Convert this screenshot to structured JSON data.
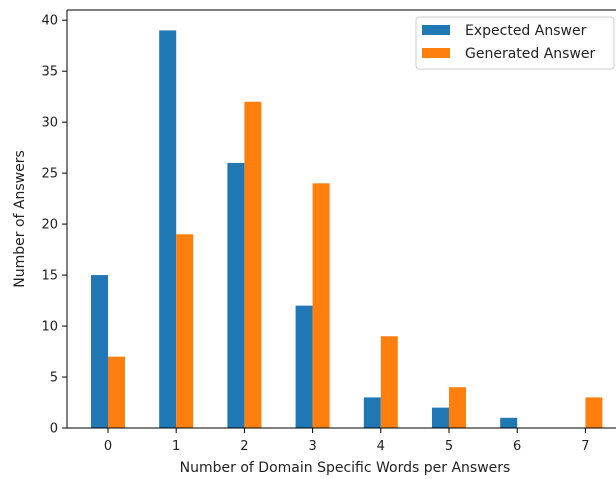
{
  "chart_data": {
    "type": "bar",
    "title": "",
    "xlabel": "Number of Domain Specific Words per Answers",
    "ylabel": "Number of Answers",
    "categories": [
      "0",
      "1",
      "2",
      "3",
      "4",
      "5",
      "6",
      "7"
    ],
    "series": [
      {
        "name": "Expected Answer",
        "color": "#1f77b4",
        "values": [
          15,
          39,
          26,
          12,
          3,
          2,
          1,
          0
        ]
      },
      {
        "name": "Generated Answer",
        "color": "#ff7f0e",
        "values": [
          7,
          19,
          32,
          24,
          9,
          4,
          0,
          3
        ]
      }
    ],
    "ylim": [
      0,
      41
    ],
    "yticks": [
      0,
      5,
      10,
      15,
      20,
      25,
      30,
      35,
      40
    ],
    "grid": false,
    "legend_position": "top-right"
  }
}
